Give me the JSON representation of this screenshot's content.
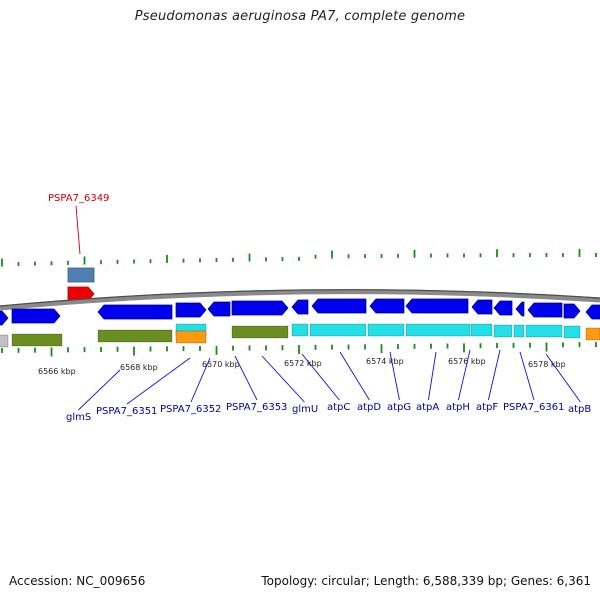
{
  "title": "Pseudomonas aeruginosa PA7, complete genome",
  "footer": {
    "accession": "Accession: NC_009656",
    "topology": "Topology: circular; Length: 6,588,339 bp; Genes: 6,361"
  },
  "colors": {
    "backbone": "#8a8a8a",
    "gene_blue": "#0000ee",
    "cds_green": "#6b8e23",
    "cds_cyan": "#22e0e6",
    "cds_orange": "#ff9a10",
    "cds_gray": "#c0c0c0",
    "tick": "#1a8a1a",
    "label_blue": "#00009a",
    "label_red": "#cc0000",
    "steelblue": "#5080b0",
    "red": "#ee0000"
  },
  "scale_labels": [
    "6566 kbp",
    "6568 kbp",
    "6570 kbp",
    "6572 kbp",
    "6574 kbp",
    "6576 kbp",
    "6578 kbp"
  ],
  "gene_labels": [
    "glmS",
    "PSPA7_6351",
    "PSPA7_6352",
    "PSPA7_6353",
    "glmU",
    "atpC",
    "atpD",
    "atpG",
    "atpA",
    "atpH",
    "atpF",
    "PSPA7_6361",
    "atpB"
  ],
  "highlight_label": "PSPA7_6349"
}
